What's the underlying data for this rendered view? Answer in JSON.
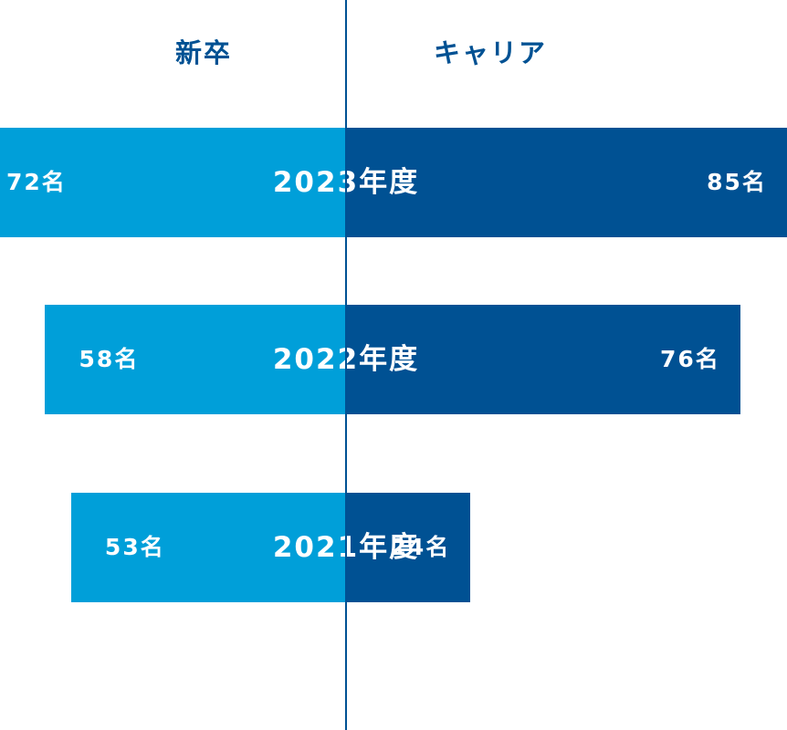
{
  "chart_data": {
    "type": "bar",
    "orientation": "horizontal-diverging",
    "categories": [
      "2023年度",
      "2022年度",
      "2021年度"
    ],
    "series": [
      {
        "name": "新卒",
        "values": [
          72,
          58,
          53
        ],
        "color": "#009fd9",
        "side": "left"
      },
      {
        "name": "キャリア",
        "values": [
          85,
          76,
          24
        ],
        "color": "#005193",
        "side": "right"
      }
    ],
    "value_labels": {
      "新卒": [
        "72名",
        "58名",
        "53名"
      ],
      "キャリア": [
        "85名",
        "76名",
        "24名"
      ]
    },
    "divider_color": "#005193",
    "header_color": "#005193",
    "grid": false
  }
}
